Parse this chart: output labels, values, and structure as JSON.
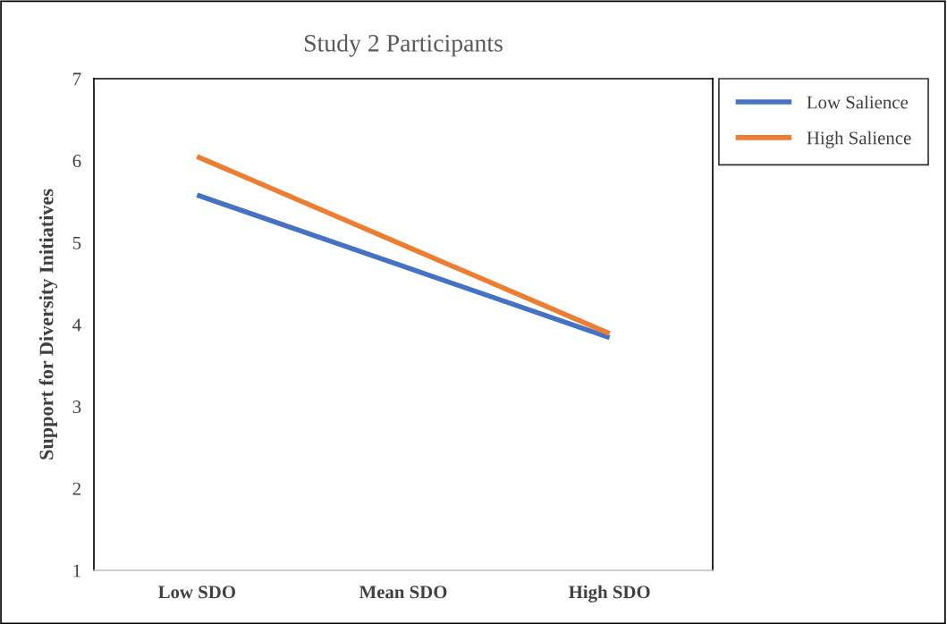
{
  "chart_data": {
    "type": "line",
    "title": "Study 2 Participants",
    "ylabel": "Support for Diversity Initiatives",
    "categories": [
      "Low SDO",
      "Mean SDO",
      "High SDO"
    ],
    "series": [
      {
        "name": "Low Salience",
        "color": "#4472c4",
        "values": [
          5.58,
          4.71,
          3.84
        ]
      },
      {
        "name": "High Salience",
        "color": "#ed7d31",
        "values": [
          6.05,
          4.97,
          3.89
        ]
      }
    ],
    "ylim": [
      1,
      7
    ],
    "yticks": [
      1,
      2,
      3,
      4,
      5,
      6,
      7
    ],
    "grid": false,
    "legend": "right",
    "marker": "none",
    "line_style": "solid"
  }
}
